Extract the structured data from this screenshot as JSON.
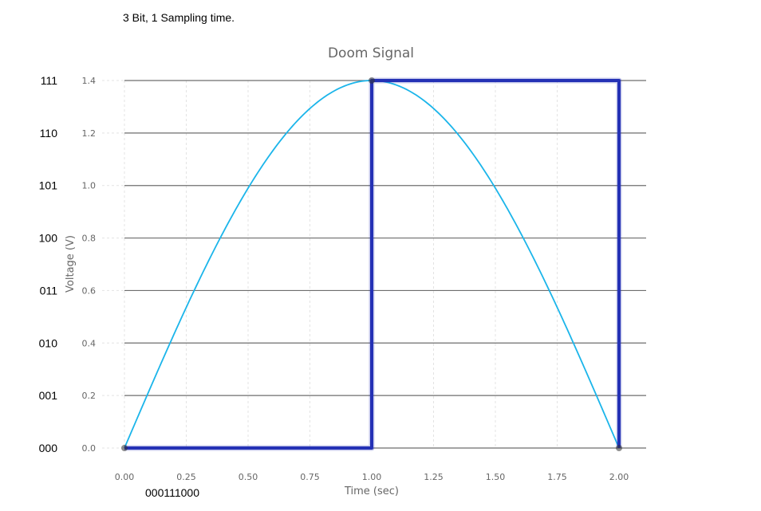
{
  "caption": "3 Bit, 1 Sampling time.",
  "bit_sequence": "000111000",
  "chart_data": {
    "type": "line",
    "title": "Doom Signal",
    "xlabel": "Time (sec)",
    "ylabel": "Voltage (V)",
    "xlim": [
      0.0,
      2.0
    ],
    "ylim": [
      0.0,
      1.4
    ],
    "xticks": [
      "0.00",
      "0.25",
      "0.50",
      "0.75",
      "1.00",
      "1.25",
      "1.50",
      "1.75",
      "2.00"
    ],
    "yticks": [
      "0.0",
      "0.2",
      "0.4",
      "0.6",
      "0.8",
      "1.0",
      "1.2",
      "1.4"
    ],
    "quantization_levels": [
      {
        "code": "000",
        "value": 0.0
      },
      {
        "code": "001",
        "value": 0.2
      },
      {
        "code": "010",
        "value": 0.4
      },
      {
        "code": "011",
        "value": 0.6
      },
      {
        "code": "100",
        "value": 0.8
      },
      {
        "code": "101",
        "value": 1.0
      },
      {
        "code": "110",
        "value": 1.2
      },
      {
        "code": "111",
        "value": 1.4
      }
    ],
    "series": [
      {
        "kind": "smooth",
        "color": "#1bb5ea",
        "x": [
          0.0,
          0.1,
          0.2,
          0.3,
          0.4,
          0.5,
          0.6,
          0.7,
          0.8,
          0.9,
          1.0,
          1.1,
          1.2,
          1.3,
          1.4,
          1.5,
          1.6,
          1.7,
          1.8,
          1.9,
          2.0
        ],
        "y": [
          0.0,
          0.219,
          0.433,
          0.636,
          0.823,
          0.99,
          1.133,
          1.247,
          1.331,
          1.383,
          1.4,
          1.383,
          1.331,
          1.247,
          1.133,
          0.99,
          0.823,
          0.636,
          0.433,
          0.219,
          0.0
        ]
      },
      {
        "kind": "quantized",
        "color": "#2431b5",
        "x": [
          0.0,
          1.0,
          1.0,
          2.0,
          2.0
        ],
        "y": [
          0.0,
          0.0,
          1.4,
          1.4,
          0.0
        ]
      }
    ],
    "sample_points": [
      {
        "x": 0.0,
        "y": 0.0
      },
      {
        "x": 1.0,
        "y": 1.4
      },
      {
        "x": 2.0,
        "y": 0.0
      }
    ],
    "grid": true
  }
}
